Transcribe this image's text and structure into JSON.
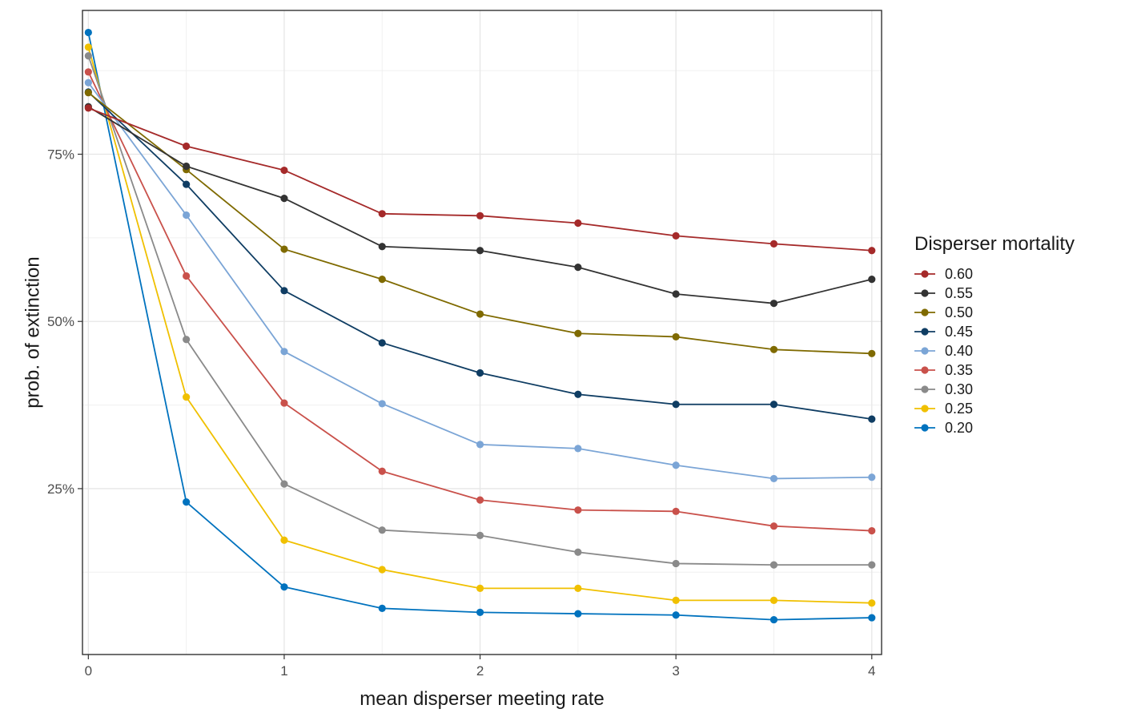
{
  "chart_data": {
    "type": "line",
    "title": "",
    "xlabel": "mean disperser meeting rate",
    "ylabel": "prob. of extinction",
    "x": [
      0,
      0.5,
      1,
      1.5,
      2,
      2.5,
      3,
      3.5,
      4
    ],
    "xlim": [
      -0.03,
      4.05
    ],
    "ylim": [
      0.002,
      0.965
    ],
    "x_ticks": [
      0,
      1,
      2,
      3,
      4
    ],
    "y_ticks": [
      0.25,
      0.5,
      0.75
    ],
    "y_tick_labels": [
      "25%",
      "50%",
      "75%"
    ],
    "grid": true,
    "legend": {
      "title": "Disperser mortality",
      "position": "right"
    },
    "series": [
      {
        "name": "0.60",
        "color": "#A52A2A",
        "values": [
          0.819,
          0.762,
          0.726,
          0.661,
          0.658,
          0.647,
          0.628,
          0.616,
          0.606
        ]
      },
      {
        "name": "0.55",
        "color": "#333333",
        "values": [
          0.821,
          0.732,
          0.684,
          0.612,
          0.606,
          0.581,
          0.541,
          0.527,
          0.563
        ]
      },
      {
        "name": "0.50",
        "color": "#7F6A00",
        "values": [
          0.842,
          0.727,
          0.608,
          0.563,
          0.511,
          0.482,
          0.477,
          0.458,
          0.452
        ]
      },
      {
        "name": "0.45",
        "color": "#0F3D63",
        "values": [
          0.843,
          0.705,
          0.546,
          0.468,
          0.423,
          0.391,
          0.376,
          0.376,
          0.354
        ]
      },
      {
        "name": "0.40",
        "color": "#7BA5D6",
        "values": [
          0.857,
          0.659,
          0.455,
          0.377,
          0.316,
          0.31,
          0.285,
          0.265,
          0.267
        ]
      },
      {
        "name": "0.35",
        "color": "#C9514B",
        "values": [
          0.873,
          0.568,
          0.378,
          0.276,
          0.233,
          0.218,
          0.216,
          0.194,
          0.187
        ]
      },
      {
        "name": "0.30",
        "color": "#8A8A8A",
        "values": [
          0.897,
          0.473,
          0.257,
          0.188,
          0.18,
          0.155,
          0.138,
          0.136,
          0.136
        ]
      },
      {
        "name": "0.25",
        "color": "#F0C000",
        "values": [
          0.91,
          0.387,
          0.173,
          0.129,
          0.101,
          0.101,
          0.083,
          0.083,
          0.079
        ]
      },
      {
        "name": "0.20",
        "color": "#0072BE",
        "values": [
          0.932,
          0.23,
          0.103,
          0.071,
          0.065,
          0.063,
          0.061,
          0.054,
          0.057
        ]
      }
    ]
  }
}
